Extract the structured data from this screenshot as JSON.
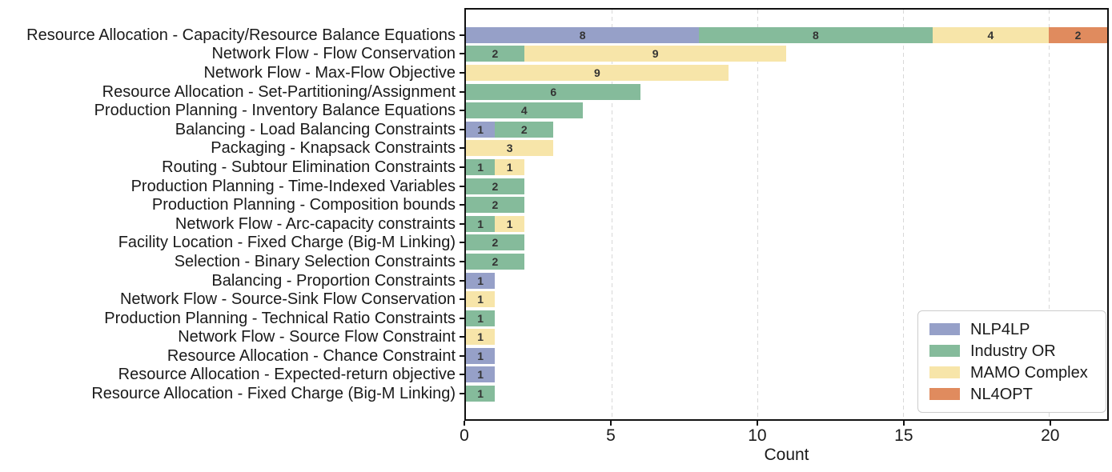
{
  "chart_data": {
    "type": "bar",
    "orientation": "horizontal",
    "stacked": true,
    "title": "",
    "xlabel": "Count",
    "xlim": [
      0,
      22
    ],
    "xticks": [
      0,
      5,
      10,
      15,
      20
    ],
    "grid": "vertical-dashed",
    "legend_position": "lower-right-inside",
    "bar_labels": true,
    "categories": [
      "Resource Allocation - Capacity/Resource Balance Equations",
      "Network Flow - Flow Conservation",
      "Network Flow - Max-Flow Objective",
      "Resource Allocation - Set-Partitioning/Assignment",
      "Production Planning - Inventory Balance Equations",
      "Balancing - Load Balancing Constraints",
      "Packaging - Knapsack Constraints",
      "Routing - Subtour Elimination Constraints",
      "Production Planning - Time-Indexed Variables",
      "Production Planning - Composition bounds",
      "Network Flow - Arc-capacity constraints",
      "Facility Location - Fixed Charge (Big-M Linking)",
      "Selection - Binary Selection Constraints",
      "Balancing - Proportion Constraints",
      "Network Flow - Source-Sink Flow Conservation",
      "Production Planning - Technical Ratio Constraints",
      "Network Flow - Source Flow Constraint",
      "Resource Allocation - Chance Constraint",
      "Resource Allocation - Expected-return objective",
      "Resource Allocation - Fixed Charge (Big-M Linking)"
    ],
    "series": [
      {
        "name": "NLP4LP",
        "color": "#96A0C8",
        "values": [
          8,
          0,
          0,
          0,
          0,
          1,
          0,
          0,
          0,
          0,
          0,
          0,
          0,
          1,
          0,
          0,
          0,
          1,
          1,
          0
        ]
      },
      {
        "name": "Industry OR",
        "color": "#85BB9B",
        "values": [
          8,
          2,
          0,
          6,
          4,
          2,
          0,
          1,
          2,
          2,
          1,
          2,
          2,
          0,
          0,
          1,
          0,
          0,
          0,
          1
        ]
      },
      {
        "name": "MAMO Complex",
        "color": "#F7E5A9",
        "values": [
          4,
          9,
          9,
          0,
          0,
          0,
          3,
          1,
          0,
          0,
          1,
          0,
          0,
          0,
          1,
          0,
          1,
          0,
          0,
          0
        ]
      },
      {
        "name": "NL4OPT",
        "color": "#E08B5E",
        "values": [
          2,
          0,
          0,
          0,
          0,
          0,
          0,
          0,
          0,
          0,
          0,
          0,
          0,
          0,
          0,
          0,
          0,
          0,
          0,
          0
        ]
      }
    ],
    "colors": {
      "grid": "#d8d8d8",
      "spine": "#111111",
      "value_label": "#333333",
      "legend_border": "#cccccc"
    }
  }
}
